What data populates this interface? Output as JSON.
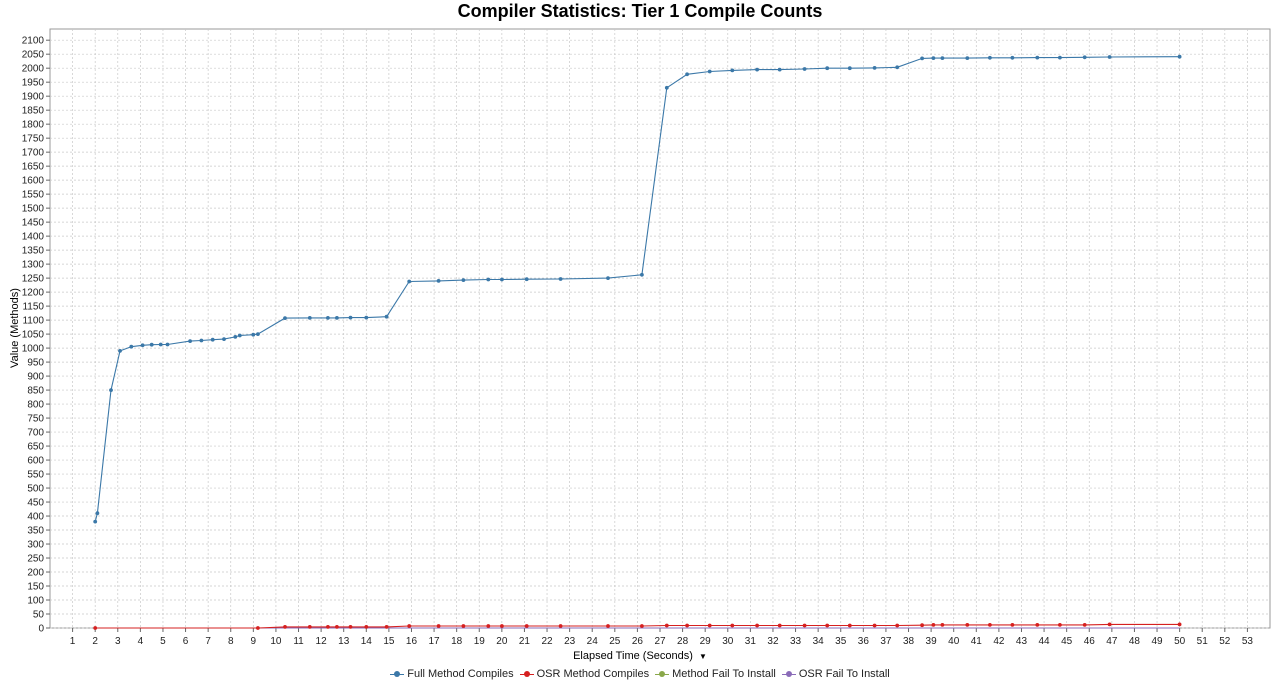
{
  "chart_data": {
    "type": "line",
    "title": "Compiler Statistics: Tier 1 Compile Counts",
    "xlabel": "Elapsed Time (Seconds)",
    "ylabel": "Value (Methods)",
    "xlim": [
      0,
      54
    ],
    "ylim": [
      0,
      2140
    ],
    "x_ticks": [
      1,
      2,
      3,
      4,
      5,
      6,
      7,
      8,
      9,
      10,
      11,
      12,
      13,
      14,
      15,
      16,
      17,
      18,
      19,
      20,
      21,
      22,
      23,
      24,
      25,
      26,
      27,
      28,
      29,
      30,
      31,
      32,
      33,
      34,
      35,
      36,
      37,
      38,
      39,
      40,
      41,
      42,
      43,
      44,
      45,
      46,
      47,
      48,
      49,
      50,
      51,
      52,
      53
    ],
    "y_ticks": [
      0,
      50,
      100,
      150,
      200,
      250,
      300,
      350,
      400,
      450,
      500,
      550,
      600,
      650,
      700,
      750,
      800,
      850,
      900,
      950,
      1000,
      1050,
      1100,
      1150,
      1200,
      1250,
      1300,
      1350,
      1400,
      1450,
      1500,
      1550,
      1600,
      1650,
      1700,
      1750,
      1800,
      1850,
      1900,
      1950,
      2000,
      2050,
      2100
    ],
    "grid": true,
    "legend_position": "bottom",
    "series": [
      {
        "name": "Full Method Compiles",
        "color": "#3b78a8",
        "points": [
          [
            2.0,
            380
          ],
          [
            2.1,
            410
          ],
          [
            2.7,
            850
          ],
          [
            3.1,
            990
          ],
          [
            3.6,
            1005
          ],
          [
            4.1,
            1010
          ],
          [
            4.5,
            1012
          ],
          [
            4.9,
            1013
          ],
          [
            5.2,
            1013
          ],
          [
            6.2,
            1025
          ],
          [
            6.7,
            1027
          ],
          [
            7.2,
            1030
          ],
          [
            7.7,
            1032
          ],
          [
            8.2,
            1040
          ],
          [
            8.4,
            1045
          ],
          [
            9.0,
            1048
          ],
          [
            9.2,
            1050
          ],
          [
            10.4,
            1107
          ],
          [
            11.5,
            1108
          ],
          [
            12.3,
            1108
          ],
          [
            12.7,
            1108
          ],
          [
            13.3,
            1109
          ],
          [
            14.0,
            1109
          ],
          [
            14.9,
            1112
          ],
          [
            15.9,
            1238
          ],
          [
            17.2,
            1240
          ],
          [
            18.3,
            1243
          ],
          [
            19.4,
            1245
          ],
          [
            20.0,
            1245
          ],
          [
            21.1,
            1246
          ],
          [
            22.6,
            1247
          ],
          [
            24.7,
            1250
          ],
          [
            26.2,
            1262
          ],
          [
            27.3,
            1930
          ],
          [
            28.2,
            1978
          ],
          [
            29.2,
            1988
          ],
          [
            30.2,
            1992
          ],
          [
            31.3,
            1995
          ],
          [
            32.3,
            1995
          ],
          [
            33.4,
            1997
          ],
          [
            34.4,
            2000
          ],
          [
            35.4,
            2000
          ],
          [
            36.5,
            2001
          ],
          [
            37.5,
            2003
          ],
          [
            38.6,
            2035
          ],
          [
            39.1,
            2036
          ],
          [
            39.5,
            2036
          ],
          [
            40.6,
            2036
          ],
          [
            41.6,
            2037
          ],
          [
            42.6,
            2037
          ],
          [
            43.7,
            2038
          ],
          [
            44.7,
            2038
          ],
          [
            45.8,
            2039
          ],
          [
            46.9,
            2040
          ],
          [
            50.0,
            2041
          ]
        ]
      },
      {
        "name": "OSR Method Compiles",
        "color": "#d62020",
        "points": [
          [
            2.0,
            0
          ],
          [
            9.2,
            0
          ],
          [
            10.4,
            4
          ],
          [
            11.5,
            4
          ],
          [
            12.3,
            4
          ],
          [
            12.7,
            4
          ],
          [
            13.3,
            4
          ],
          [
            14.0,
            4
          ],
          [
            14.9,
            4
          ],
          [
            15.9,
            7
          ],
          [
            17.2,
            7
          ],
          [
            18.3,
            7
          ],
          [
            19.4,
            7
          ],
          [
            20.0,
            7
          ],
          [
            21.1,
            7
          ],
          [
            22.6,
            7
          ],
          [
            24.7,
            7
          ],
          [
            26.2,
            7
          ],
          [
            27.3,
            9
          ],
          [
            28.2,
            9
          ],
          [
            29.2,
            9
          ],
          [
            30.2,
            9
          ],
          [
            31.3,
            9
          ],
          [
            32.3,
            9
          ],
          [
            33.4,
            9
          ],
          [
            34.4,
            9
          ],
          [
            35.4,
            9
          ],
          [
            36.5,
            9
          ],
          [
            37.5,
            9
          ],
          [
            38.6,
            10
          ],
          [
            39.1,
            11
          ],
          [
            39.5,
            11
          ],
          [
            40.6,
            11
          ],
          [
            41.6,
            11
          ],
          [
            42.6,
            11
          ],
          [
            43.7,
            11
          ],
          [
            44.7,
            11
          ],
          [
            45.8,
            11
          ],
          [
            46.9,
            13
          ],
          [
            50.0,
            13
          ]
        ]
      },
      {
        "name": "Method Fail To Install",
        "color": "#8aa84a",
        "points": [
          [
            2.0,
            0
          ],
          [
            50.0,
            0
          ]
        ]
      },
      {
        "name": "OSR Fail To Install",
        "color": "#8a6bb8",
        "points": [
          [
            2.0,
            0
          ],
          [
            50.0,
            0
          ]
        ]
      }
    ]
  },
  "x_axis_dropdown_icon": "chevron-down-icon"
}
